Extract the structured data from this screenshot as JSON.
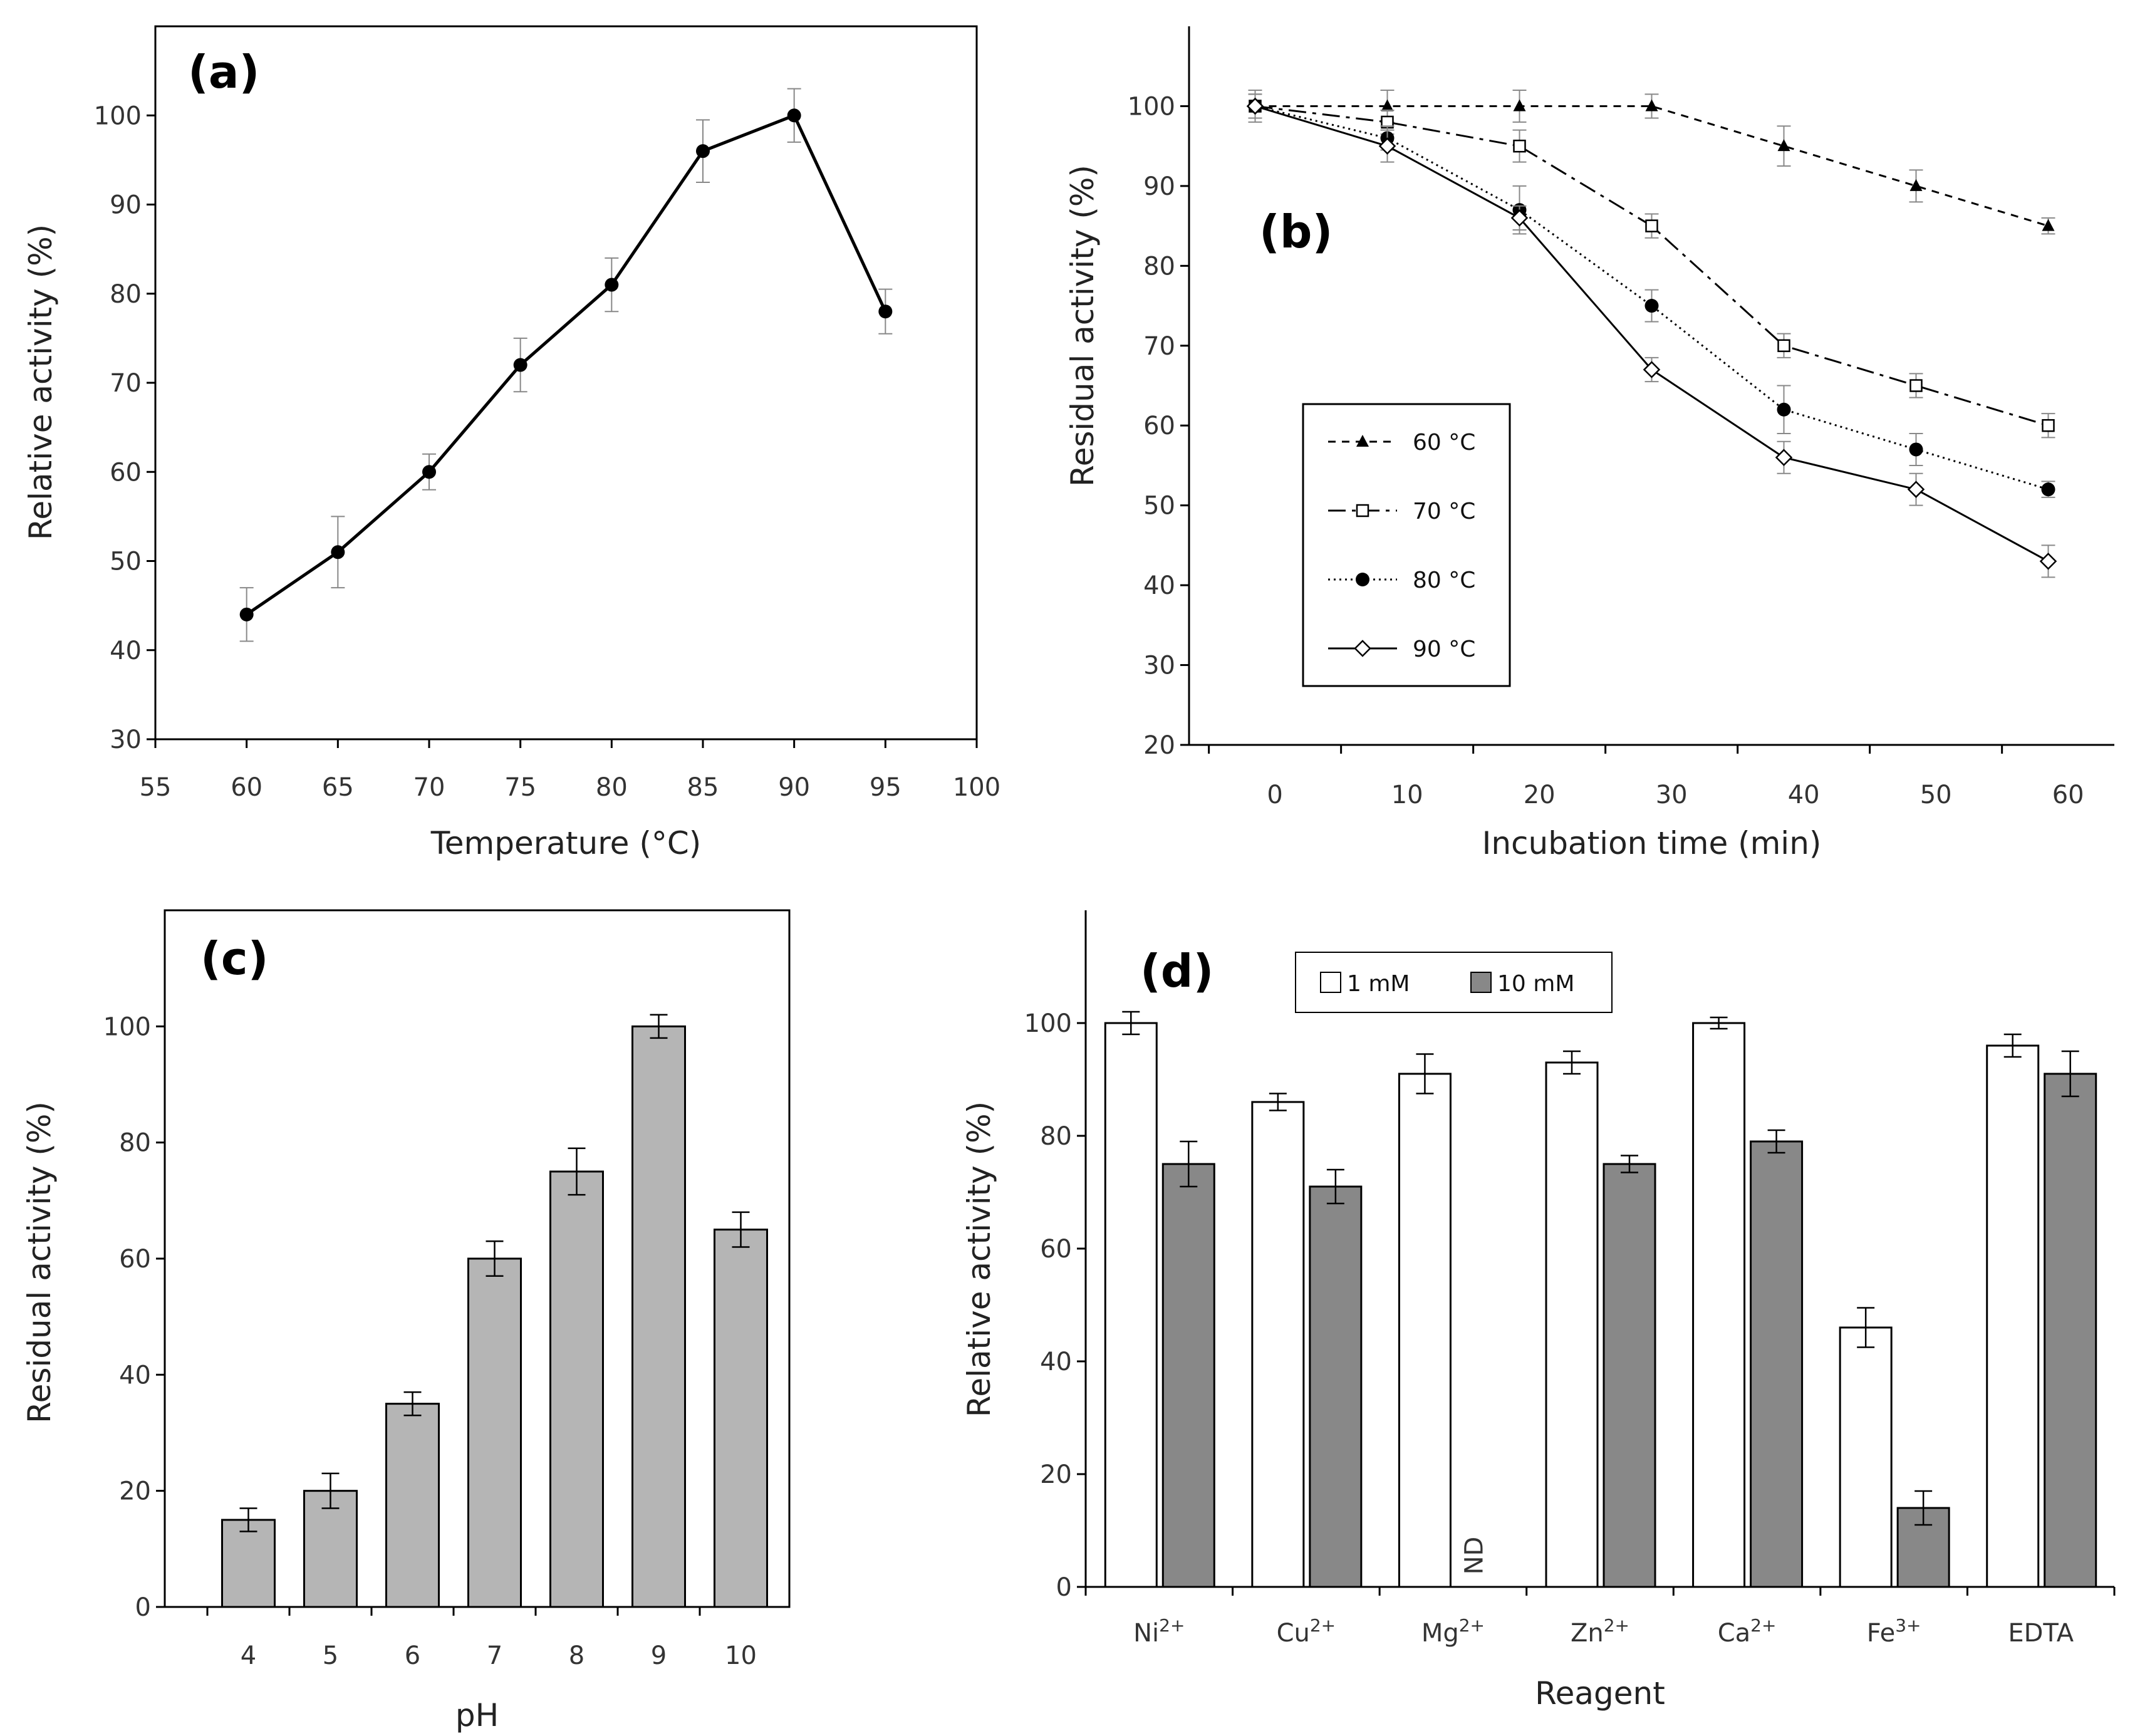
{
  "colors": {
    "axis": "#000000",
    "line": "#000000",
    "errorbar": "#888888",
    "bar_gray": "#b5b5b5",
    "bar_dark": "#888888",
    "bar_white": "#ffffff"
  },
  "chart_data": [
    {
      "id": "a",
      "panel_label": "(a)",
      "type": "line",
      "xlabel": "Temperature (°C)",
      "ylabel": "Relative activity (%)",
      "xlim": [
        55,
        100
      ],
      "ylim": [
        30,
        110
      ],
      "xticks": [
        55,
        60,
        65,
        70,
        75,
        80,
        85,
        90,
        95,
        100
      ],
      "yticks": [
        30,
        40,
        50,
        60,
        70,
        80,
        90,
        100
      ],
      "series": [
        {
          "name": "activity",
          "marker": "filled-circle",
          "dash": "solid",
          "x": [
            60,
            65,
            70,
            75,
            80,
            85,
            90,
            95
          ],
          "y": [
            44,
            51,
            60,
            72,
            81,
            96,
            100,
            78
          ],
          "err": [
            3,
            4,
            2,
            3,
            3,
            3.5,
            3,
            2.5
          ]
        }
      ]
    },
    {
      "id": "b",
      "panel_label": "(b)",
      "type": "line",
      "xlabel": "Incubation time (min)",
      "ylabel": "Residual activity  (%)",
      "xlim": [
        -6.5,
        63.5
      ],
      "ylim": [
        20,
        110
      ],
      "xticks": [
        0,
        10,
        20,
        30,
        40,
        50,
        60
      ],
      "yticks": [
        20,
        30,
        40,
        50,
        60,
        70,
        80,
        90,
        100
      ],
      "legend": [
        "60 °C",
        "70 °C",
        "80 °C",
        "90 °C"
      ],
      "series": [
        {
          "name": "60 °C",
          "marker": "filled-triangle",
          "dash": "dashed",
          "x": [
            -1.5,
            8.5,
            18.5,
            28.5,
            38.5,
            48.5,
            58.5
          ],
          "y": [
            100,
            100,
            100,
            100,
            95,
            90,
            85
          ],
          "err": [
            2,
            2,
            2,
            1.5,
            2.5,
            2,
            1
          ]
        },
        {
          "name": "70 °C",
          "marker": "open-square",
          "dash": "dashdot",
          "x": [
            -1.5,
            8.5,
            18.5,
            28.5,
            38.5,
            48.5,
            58.5
          ],
          "y": [
            100,
            98,
            95,
            85,
            70,
            65,
            60
          ],
          "err": [
            1.5,
            1.5,
            2,
            1.5,
            1.5,
            1.5,
            1.5
          ]
        },
        {
          "name": "80 °C",
          "marker": "filled-circle",
          "dash": "dotted",
          "x": [
            -1.5,
            8.5,
            18.5,
            28.5,
            38.5,
            48.5,
            58.5
          ],
          "y": [
            100,
            96,
            87,
            75,
            62,
            57,
            52
          ],
          "err": [
            1.5,
            1.5,
            3,
            2,
            3,
            2,
            1
          ]
        },
        {
          "name": "90 °C",
          "marker": "open-diamond",
          "dash": "solid",
          "x": [
            -1.5,
            8.5,
            18.5,
            28.5,
            38.5,
            48.5,
            58.5
          ],
          "y": [
            100,
            95,
            86,
            67,
            56,
            52,
            43
          ],
          "err": [
            1.5,
            2,
            1.5,
            1.5,
            2,
            2,
            2
          ]
        }
      ]
    },
    {
      "id": "c",
      "panel_label": "(c)",
      "type": "bar",
      "xlabel": "pH",
      "ylabel": "Residual activity (%)",
      "ylim": [
        0,
        120
      ],
      "yticks": [
        0,
        20,
        40,
        60,
        80,
        100
      ],
      "categories": [
        "4",
        "5",
        "6",
        "7",
        "8",
        "9",
        "10"
      ],
      "series": [
        {
          "name": "residual activity",
          "values": [
            15,
            20,
            35,
            60,
            75,
            100,
            65
          ],
          "err": [
            2,
            3,
            2,
            3,
            4,
            2,
            3
          ]
        }
      ]
    },
    {
      "id": "d",
      "panel_label": "(d)",
      "type": "bar",
      "xlabel": "Reagent",
      "ylabel": "Relative activity  (%)",
      "ylim": [
        0,
        120
      ],
      "yticks": [
        0,
        20,
        40,
        60,
        80,
        100
      ],
      "categories": [
        "Ni",
        "Cu",
        "Mg",
        "Zn",
        "Ca",
        "Fe",
        "EDTA"
      ],
      "category_superscripts": [
        "2+",
        "2+",
        "2+",
        "2+",
        "2+",
        "3+",
        ""
      ],
      "legend": [
        "1 mM",
        "10 mM"
      ],
      "annotation": "ND",
      "series": [
        {
          "name": "1 mM",
          "values": [
            100,
            86,
            91,
            93,
            100,
            46,
            96
          ],
          "err": [
            2,
            1.5,
            3.5,
            2,
            1,
            3.5,
            2
          ]
        },
        {
          "name": "10 mM",
          "values": [
            75,
            71,
            null,
            75,
            79,
            14,
            91
          ],
          "err": [
            4,
            3,
            null,
            1.5,
            2,
            3,
            4
          ]
        }
      ]
    }
  ]
}
